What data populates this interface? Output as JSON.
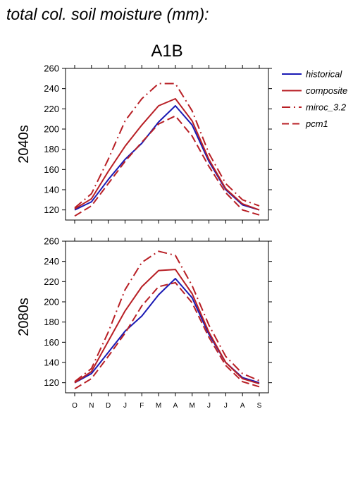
{
  "figure": {
    "title": "total col. soil moisture (mm):",
    "scenario": "A1B"
  },
  "chart_data": [
    {
      "type": "line",
      "title": "A1B",
      "row_label": "2040s",
      "ylabel": "",
      "xlabel": "",
      "ylim": [
        110,
        260
      ],
      "yticks": [
        120,
        140,
        160,
        180,
        200,
        220,
        240,
        260
      ],
      "categories": [
        "O",
        "N",
        "D",
        "J",
        "F",
        "M",
        "A",
        "M",
        "J",
        "J",
        "A",
        "S"
      ],
      "grid": false,
      "legend": "right",
      "series": [
        {
          "name": "historical",
          "color": "#1a1ab4",
          "dash": "solid",
          "values": [
            120,
            128,
            150,
            170,
            186,
            207,
            223,
            204,
            168,
            140,
            125,
            120
          ]
        },
        {
          "name": "composite",
          "color": "#b81f25",
          "dash": "solid",
          "values": [
            121,
            131,
            158,
            183,
            204,
            223,
            230,
            208,
            170,
            141,
            126,
            120
          ]
        },
        {
          "name": "miroc_3.2",
          "color": "#b81f25",
          "dash": "dashdot",
          "values": [
            122,
            136,
            170,
            208,
            230,
            245,
            245,
            218,
            176,
            146,
            130,
            124
          ]
        },
        {
          "name": "pcm1",
          "color": "#b81f25",
          "dash": "dashed",
          "values": [
            114,
            124,
            146,
            168,
            187,
            205,
            213,
            193,
            163,
            137,
            120,
            115
          ]
        }
      ]
    },
    {
      "type": "line",
      "title": "",
      "row_label": "2080s",
      "ylabel": "",
      "xlabel": "",
      "ylim": [
        110,
        260
      ],
      "yticks": [
        120,
        140,
        160,
        180,
        200,
        220,
        240,
        260
      ],
      "categories": [
        "O",
        "N",
        "D",
        "J",
        "F",
        "M",
        "A",
        "M",
        "J",
        "J",
        "A",
        "S"
      ],
      "grid": false,
      "legend": "none",
      "series": [
        {
          "name": "historical",
          "color": "#1a1ab4",
          "dash": "solid",
          "values": [
            120,
            129,
            150,
            171,
            186,
            207,
            223,
            204,
            168,
            140,
            125,
            120
          ]
        },
        {
          "name": "composite",
          "color": "#b81f25",
          "dash": "solid",
          "values": [
            120,
            131,
            161,
            191,
            215,
            231,
            232,
            208,
            170,
            140,
            124,
            119
          ]
        },
        {
          "name": "miroc_3.2",
          "color": "#b81f25",
          "dash": "dashdot",
          "values": [
            121,
            134,
            170,
            212,
            239,
            250,
            246,
            216,
            177,
            146,
            129,
            122
          ]
        },
        {
          "name": "pcm1",
          "color": "#b81f25",
          "dash": "dashed",
          "values": [
            114,
            124,
            146,
            169,
            196,
            215,
            219,
            199,
            165,
            137,
            121,
            116
          ]
        }
      ]
    }
  ]
}
